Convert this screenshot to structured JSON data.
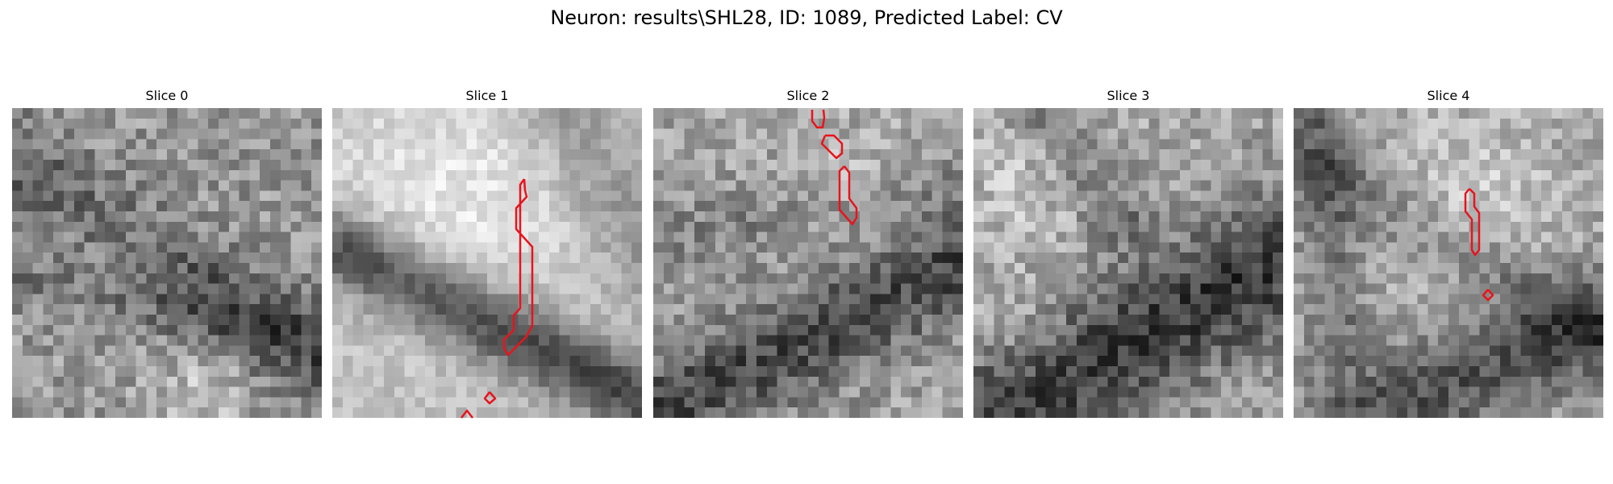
{
  "figure": {
    "title": "Neuron: results\\SHL28, ID: 1089, Predicted Label: CV"
  },
  "panels": [
    {
      "title": "Slice 0"
    },
    {
      "title": "Slice 1"
    },
    {
      "title": "Slice 2"
    },
    {
      "title": "Slice 3"
    },
    {
      "title": "Slice 4"
    }
  ],
  "colors": {
    "contour": "#e8141c",
    "background": "#ffffff"
  },
  "image": {
    "colormap": "gray",
    "grid": 30,
    "axes": "off"
  }
}
